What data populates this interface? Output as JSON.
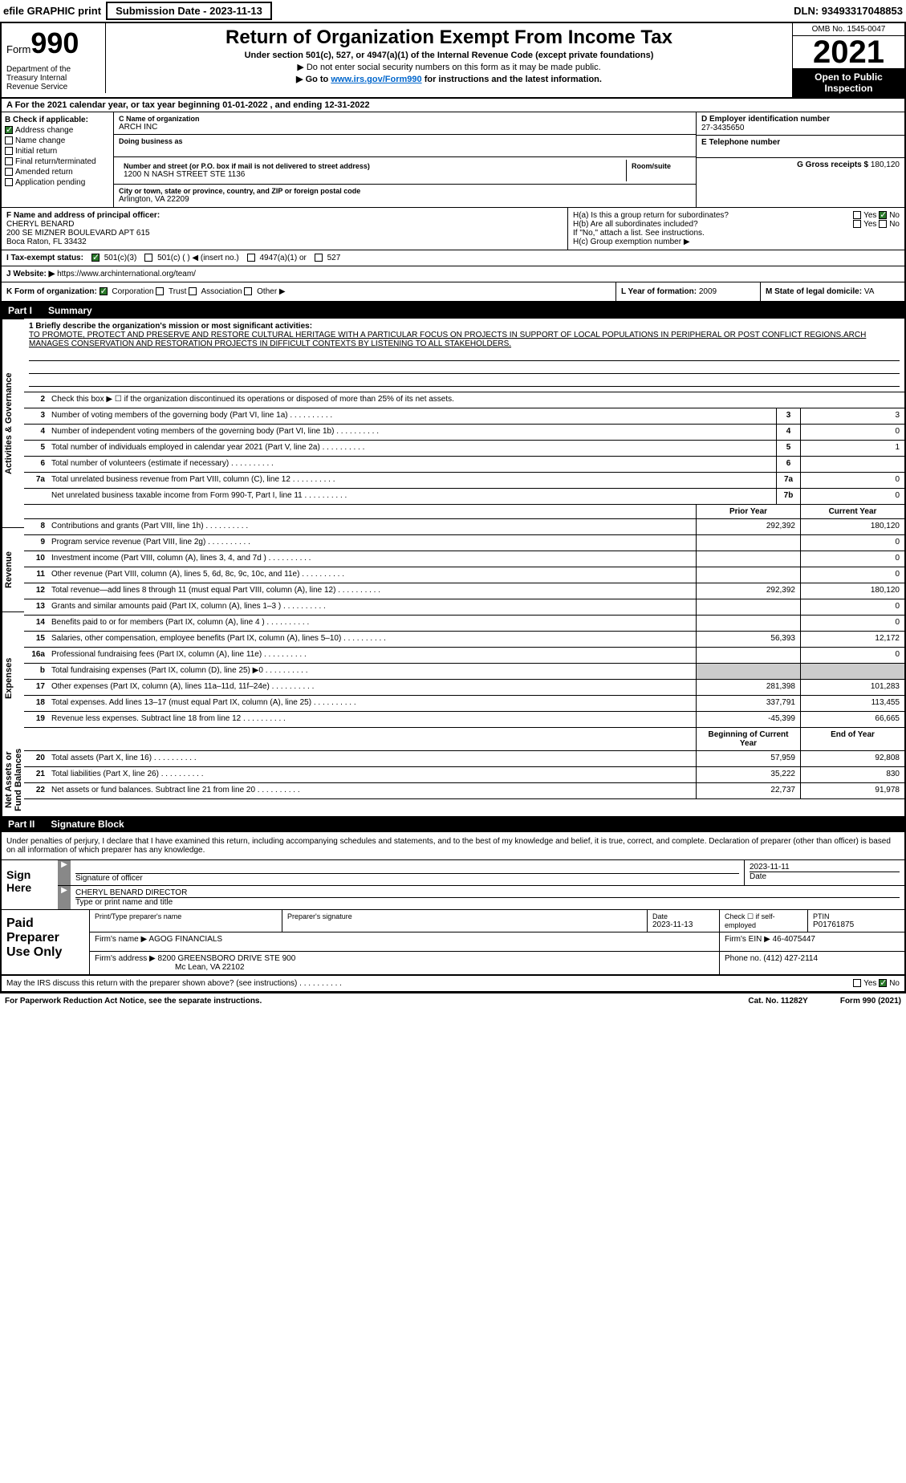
{
  "header": {
    "efile": "efile GRAPHIC print",
    "submission_btn": "Submission Date - 2023-11-13",
    "dln": "DLN: 93493317048853"
  },
  "form": {
    "form_word": "Form",
    "form_num": "990",
    "title": "Return of Organization Exempt From Income Tax",
    "subtitle": "Under section 501(c), 527, or 4947(a)(1) of the Internal Revenue Code (except private foundations)",
    "note1": "▶ Do not enter social security numbers on this form as it may be made public.",
    "note2_pre": "▶ Go to ",
    "note2_link": "www.irs.gov/Form990",
    "note2_post": " for instructions and the latest information.",
    "omb": "OMB No. 1545-0047",
    "year": "2021",
    "open_public": "Open to Public Inspection",
    "dept": "Department of the Treasury Internal Revenue Service"
  },
  "row_a": "A For the 2021 calendar year, or tax year beginning 01-01-2022    , and ending 12-31-2022",
  "section_b": {
    "label": "B Check if applicable:",
    "items": [
      "Address change",
      "Name change",
      "Initial return",
      "Final return/terminated",
      "Amended return",
      "Application pending"
    ],
    "checked_idx": 0
  },
  "section_c": {
    "name_label": "C Name of organization",
    "name": "ARCH INC",
    "dba_label": "Doing business as",
    "addr_label": "Number and street (or P.O. box if mail is not delivered to street address)",
    "room_label": "Room/suite",
    "addr": "1200 N NASH STREET STE 1136",
    "city_label": "City or town, state or province, country, and ZIP or foreign postal code",
    "city": "Arlington, VA  22209"
  },
  "section_d": {
    "label": "D Employer identification number",
    "value": "27-3435650"
  },
  "section_e": {
    "label": "E Telephone number",
    "value": ""
  },
  "section_g": {
    "label": "G Gross receipts $",
    "value": "180,120"
  },
  "section_f": {
    "label": "F  Name and address of principal officer:",
    "name": "CHERYL BENARD",
    "addr1": "200 SE MIZNER BOULEVARD APT 615",
    "addr2": "Boca Raton, FL  33432"
  },
  "section_h": {
    "ha": "H(a)  Is this a group return for subordinates?",
    "ha_yes": "Yes",
    "ha_no": "No",
    "hb": "H(b)  Are all subordinates included?",
    "hb_yes": "Yes",
    "hb_no": "No",
    "hb_note": "If \"No,\" attach a list. See instructions.",
    "hc": "H(c)  Group exemption number ▶"
  },
  "tax_exempt": {
    "label": "I  Tax-exempt status:",
    "opt1": "501(c)(3)",
    "opt2": "501(c) (   ) ◀ (insert no.)",
    "opt3": "4947(a)(1) or",
    "opt4": "527"
  },
  "website": {
    "label": "J  Website: ▶",
    "value": "https://www.archinternational.org/team/"
  },
  "section_k": {
    "label": "K Form of organization:",
    "opts": [
      "Corporation",
      "Trust",
      "Association",
      "Other ▶"
    ],
    "l_label": "L Year of formation:",
    "l_val": "2009",
    "m_label": "M State of legal domicile:",
    "m_val": "VA"
  },
  "part1": {
    "header_num": "Part I",
    "header_title": "Summary",
    "tabs": [
      "Activities & Governance",
      "Revenue",
      "Expenses",
      "Net Assets or Fund Balances"
    ],
    "mission_label": "1  Briefly describe the organization's mission or most significant activities:",
    "mission": "TO PROMOTE, PROTECT AND PRESERVE AND RESTORE CULTURAL HERITAGE WITH A PARTICULAR FOCUS ON PROJECTS IN SUPPORT OF LOCAL POPULATIONS IN PERIPHERAL OR POST CONFLICT REGIONS.ARCH MANAGES CONSERVATION AND RESTORATION PROJECTS IN DIFFICULT CONTEXTS BY LISTENING TO ALL STAKEHOLDERS.",
    "line2": "Check this box ▶ ☐  if the organization discontinued its operations or disposed of more than 25% of its net assets.",
    "gov_lines": [
      {
        "n": "3",
        "t": "Number of voting members of the governing body (Part VI, line 1a)",
        "box": "3",
        "v": "3"
      },
      {
        "n": "4",
        "t": "Number of independent voting members of the governing body (Part VI, line 1b)",
        "box": "4",
        "v": "0"
      },
      {
        "n": "5",
        "t": "Total number of individuals employed in calendar year 2021 (Part V, line 2a)",
        "box": "5",
        "v": "1"
      },
      {
        "n": "6",
        "t": "Total number of volunteers (estimate if necessary)",
        "box": "6",
        "v": ""
      },
      {
        "n": "7a",
        "t": "Total unrelated business revenue from Part VIII, column (C), line 12",
        "box": "7a",
        "v": "0"
      },
      {
        "n": "",
        "t": "Net unrelated business taxable income from Form 990-T, Part I, line 11",
        "box": "7b",
        "v": "0"
      }
    ],
    "col_headers": {
      "prior": "Prior Year",
      "current": "Current Year"
    },
    "rev_lines": [
      {
        "n": "8",
        "t": "Contributions and grants (Part VIII, line 1h)",
        "p": "292,392",
        "c": "180,120"
      },
      {
        "n": "9",
        "t": "Program service revenue (Part VIII, line 2g)",
        "p": "",
        "c": "0"
      },
      {
        "n": "10",
        "t": "Investment income (Part VIII, column (A), lines 3, 4, and 7d )",
        "p": "",
        "c": "0"
      },
      {
        "n": "11",
        "t": "Other revenue (Part VIII, column (A), lines 5, 6d, 8c, 9c, 10c, and 11e)",
        "p": "",
        "c": "0"
      },
      {
        "n": "12",
        "t": "Total revenue—add lines 8 through 11 (must equal Part VIII, column (A), line 12)",
        "p": "292,392",
        "c": "180,120"
      }
    ],
    "exp_lines": [
      {
        "n": "13",
        "t": "Grants and similar amounts paid (Part IX, column (A), lines 1–3 )",
        "p": "",
        "c": "0"
      },
      {
        "n": "14",
        "t": "Benefits paid to or for members (Part IX, column (A), line 4 )",
        "p": "",
        "c": "0"
      },
      {
        "n": "15",
        "t": "Salaries, other compensation, employee benefits (Part IX, column (A), lines 5–10)",
        "p": "56,393",
        "c": "12,172"
      },
      {
        "n": "16a",
        "t": "Professional fundraising fees (Part IX, column (A), line 11e)",
        "p": "",
        "c": "0"
      },
      {
        "n": "b",
        "t": "Total fundraising expenses (Part IX, column (D), line 25) ▶0",
        "p": "shaded",
        "c": "shaded"
      },
      {
        "n": "17",
        "t": "Other expenses (Part IX, column (A), lines 11a–11d, 11f–24e)",
        "p": "281,398",
        "c": "101,283"
      },
      {
        "n": "18",
        "t": "Total expenses. Add lines 13–17 (must equal Part IX, column (A), line 25)",
        "p": "337,791",
        "c": "113,455"
      },
      {
        "n": "19",
        "t": "Revenue less expenses. Subtract line 18 from line 12",
        "p": "-45,399",
        "c": "66,665"
      }
    ],
    "net_headers": {
      "begin": "Beginning of Current Year",
      "end": "End of Year"
    },
    "net_lines": [
      {
        "n": "20",
        "t": "Total assets (Part X, line 16)",
        "p": "57,959",
        "c": "92,808"
      },
      {
        "n": "21",
        "t": "Total liabilities (Part X, line 26)",
        "p": "35,222",
        "c": "830"
      },
      {
        "n": "22",
        "t": "Net assets or fund balances. Subtract line 21 from line 20",
        "p": "22,737",
        "c": "91,978"
      }
    ]
  },
  "part2": {
    "header_num": "Part II",
    "header_title": "Signature Block",
    "intro": "Under penalties of perjury, I declare that I have examined this return, including accompanying schedules and statements, and to the best of my knowledge and belief, it is true, correct, and complete. Declaration of preparer (other than officer) is based on all information of which preparer has any knowledge.",
    "sign_here": "Sign Here",
    "sig_officer": "Signature of officer",
    "sig_date": "2023-11-11",
    "date_label": "Date",
    "officer_name": "CHERYL BENARD  DIRECTOR",
    "type_label": "Type or print name and title",
    "paid_label": "Paid Preparer Use Only",
    "prep_name_label": "Print/Type preparer's name",
    "prep_sig_label": "Preparer's signature",
    "prep_date_label": "Date",
    "prep_date": "2023-11-13",
    "check_self": "Check ☐ if self-employed",
    "ptin_label": "PTIN",
    "ptin": "P01761875",
    "firm_name_label": "Firm's name    ▶",
    "firm_name": "AGOG FINANCIALS",
    "firm_ein_label": "Firm's EIN ▶",
    "firm_ein": "46-4075447",
    "firm_addr_label": "Firm's address ▶",
    "firm_addr1": "8200 GREENSBORO DRIVE STE 900",
    "firm_addr2": "Mc Lean, VA  22102",
    "phone_label": "Phone no.",
    "phone": "(412) 427-2114",
    "discuss": "May the IRS discuss this return with the preparer shown above? (see instructions)",
    "discuss_yes": "Yes",
    "discuss_no": "No"
  },
  "footer": {
    "paperwork": "For Paperwork Reduction Act Notice, see the separate instructions.",
    "cat": "Cat. No. 11282Y",
    "form": "Form 990 (2021)"
  }
}
